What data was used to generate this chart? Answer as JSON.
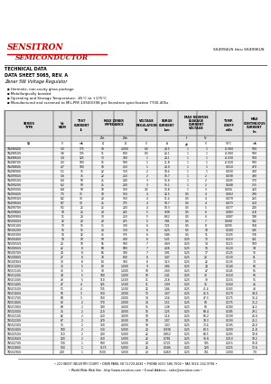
{
  "title_red": "SENSITRON",
  "title_red2": "SEMICONDUCTOR",
  "part_range": "SS4994US thru SS4996US",
  "bullets": [
    "Hermetic, non-cavity glass package",
    "Metallurgically bonded",
    "Operating and Storage Temperature: -65°C to +175°C",
    "Manufactured and screened to MIL-PRF-19500/398 per Sensitron specification 7700-405x"
  ],
  "col_units": [
    "NA",
    "V",
    "mA",
    "Ω",
    "Ω",
    "V",
    "A",
    "μA",
    "V",
    "%/°C",
    "mA"
  ],
  "col_units2": [
    "",
    "",
    "",
    "Zzt",
    "Zzk",
    "",
    "",
    "Ir",
    "Vr",
    "",
    ""
  ],
  "table_data": [
    [
      "1N4984US",
      "3.3",
      "175",
      "10",
      "1,000",
      "0.5",
      "28.5",
      "1",
      "1",
      "-0.060",
      "500"
    ],
    [
      "1N4985US",
      "3.6",
      "135",
      "11",
      "800",
      "0.5",
      "26.1",
      "1",
      "1",
      "-0.060",
      "500"
    ],
    [
      "1N4986US",
      "3.9",
      "125",
      "13",
      "700",
      "1",
      "24.1",
      "1",
      "1",
      "-0.030",
      "500"
    ],
    [
      "1N4987US",
      "4.3",
      "100",
      "15",
      "500",
      "1",
      "21.8",
      "1",
      "1",
      "-0.020",
      "500"
    ],
    [
      "1N4988US",
      "4.7",
      "100",
      "18",
      "450",
      "1",
      "20.0",
      "1",
      "1",
      "0.010",
      "470"
    ],
    [
      "1N4989US",
      "5.1",
      "75",
      "22",
      "350",
      "2",
      "18.4",
      "1",
      "1",
      "0.030",
      "430"
    ],
    [
      "1N4990US",
      "5.6",
      "75",
      "22",
      "250",
      "2",
      "16.7",
      "1",
      "2",
      "0.038",
      "390"
    ],
    [
      "1N4991US",
      "6.0",
      "50",
      "25",
      "200",
      "3",
      "15.6",
      "1",
      "2",
      "0.045",
      "370"
    ],
    [
      "1N4992US",
      "6.2",
      "50",
      "25",
      "200",
      "3",
      "15.1",
      "1",
      "2",
      "0.048",
      "355"
    ],
    [
      "1N4993US",
      "6.8",
      "50",
      "18",
      "150",
      "3.5",
      "13.8",
      "1",
      "3",
      "0.056",
      "320"
    ],
    [
      "1N4994US",
      "7.5",
      "35",
      "18",
      "150",
      "4",
      "12.5",
      "0.5",
      "4",
      "0.063",
      "290"
    ],
    [
      "1N4995US",
      "8.2",
      "30",
      "20",
      "150",
      "4",
      "11.4",
      "0.5",
      "4",
      "0.070",
      "265"
    ],
    [
      "1N4996US",
      "8.7",
      "30",
      "25",
      "175",
      "4",
      "10.7",
      "0.5",
      "4",
      "0.073",
      "250"
    ],
    [
      "1N4997US",
      "9.1",
      "25",
      "25",
      "200",
      "4",
      "10.3",
      "0.5",
      "5",
      "0.077",
      "240"
    ],
    [
      "1N4998US",
      "10",
      "25",
      "28",
      "225",
      "5",
      "9.38",
      "0.5",
      "6",
      "0.083",
      "218"
    ],
    [
      "1N4999US",
      "11",
      "20",
      "30",
      "250",
      "5",
      "8.52",
      "0.5",
      "6",
      "0.087",
      "198"
    ],
    [
      "1N5000US",
      "12",
      "20",
      "28",
      "275",
      "5",
      "7.81",
      "0.5",
      "7",
      "0.090",
      "182"
    ],
    [
      "1N5001US",
      "13",
      "15",
      "35",
      "300",
      "6",
      "7.21",
      "0.5",
      "8",
      "0.095",
      "168"
    ],
    [
      "1N5002US",
      "15",
      "15",
      "40",
      "350",
      "6",
      "6.25",
      "0.5",
      "10",
      "0.100",
      "145"
    ],
    [
      "1N5003US",
      "16",
      "12",
      "45",
      "375",
      "6",
      "5.86",
      "0.5",
      "11",
      "0.105",
      "136"
    ],
    [
      "1N5004US",
      "18",
      "10",
      "50",
      "400",
      "6",
      "5.21",
      "0.25",
      "13",
      "0.110",
      "121"
    ],
    [
      "1N5005US",
      "20",
      "10",
      "55",
      "500",
      "7",
      "4.69",
      "0.25",
      "14",
      "0.115",
      "109"
    ],
    [
      "1N5006US",
      "22",
      "8",
      "60",
      "600",
      "7",
      "4.26",
      "0.25",
      "16",
      "0.120",
      "99"
    ],
    [
      "1N5007US",
      "24",
      "8",
      "65",
      "700",
      "7",
      "3.91",
      "0.25",
      "17",
      "0.125",
      "91"
    ],
    [
      "1N5008US",
      "27",
      "8",
      "70",
      "800",
      "8",
      "3.47",
      "0.25",
      "20",
      "0.130",
      "81"
    ],
    [
      "1N5009US",
      "30",
      "8",
      "80",
      "900",
      "8",
      "3.13",
      "0.25",
      "22",
      "0.135",
      "73"
    ],
    [
      "1N5010US",
      "33",
      "5",
      "80",
      "1,000",
      "9",
      "2.84",
      "0.25",
      "24",
      "0.140",
      "66"
    ],
    [
      "1N5011US",
      "36",
      "5",
      "90",
      "1,000",
      "10",
      "2.60",
      "0.25",
      "27",
      "0.145",
      "61"
    ],
    [
      "1N5012US",
      "39",
      "5",
      "100",
      "1,000",
      "10",
      "2.41",
      "0.25",
      "30",
      "0.150",
      "56"
    ],
    [
      "1N5013US",
      "43",
      "5",
      "110",
      "1,500",
      "11",
      "2.18",
      "0.25",
      "33",
      "0.155",
      "51"
    ],
    [
      "1N5014US",
      "47",
      "4",
      "125",
      "1,500",
      "11",
      "1.99",
      "0.25",
      "36",
      "0.160",
      "46"
    ],
    [
      "1N5015US",
      "51",
      "4",
      "135",
      "1,500",
      "12",
      "1.84",
      "0.25",
      "41.4",
      "0.165",
      "43"
    ],
    [
      "1N5016US",
      "56",
      "3",
      "150",
      "2,000",
      "13",
      "1.67",
      "0.25",
      "45.5",
      "0.170",
      "39.0"
    ],
    [
      "1N5017US",
      "60",
      "3",
      "160",
      "2,000",
      "14",
      "1.56",
      "0.25",
      "47.3",
      "0.175",
      "36.4"
    ],
    [
      "1N5018US",
      "62",
      "2",
      "170",
      "2,000",
      "14",
      "1.51",
      "0.25",
      "50",
      "0.175",
      "35.2"
    ],
    [
      "1N5019US",
      "68",
      "2",
      "190",
      "3,000",
      "15",
      "1.38",
      "0.25",
      "56",
      "0.180",
      "32.1"
    ],
    [
      "1N5020US",
      "75",
      "2",
      "210",
      "3,000",
      "16",
      "1.25",
      "0.25",
      "60.4",
      "0.185",
      "29.1"
    ],
    [
      "1N5021US",
      "82",
      "2",
      "250",
      "3,000",
      "18",
      "1.14",
      "0.25",
      "66.2",
      "0.190",
      "26.6"
    ],
    [
      "1N5022US",
      "87",
      "2",
      "270",
      "3,500",
      "18",
      "1.07",
      "0.25",
      "70.3",
      "0.193",
      "25.1"
    ],
    [
      "1N5023US",
      "91",
      "2",
      "300",
      "4,000",
      "18",
      "1.03",
      "0.25",
      "73.4",
      "0.195",
      "24.0"
    ],
    [
      "1N5024US",
      "100",
      "2",
      "350",
      "5,000",
      "20",
      "0.938",
      "0.25",
      "80.5",
      "0.200",
      "21.8"
    ],
    [
      "1N5025US",
      "110",
      "2",
      "400",
      "5,000",
      "22",
      "0.852",
      "0.25",
      "88.5",
      "0.205",
      "19.8"
    ],
    [
      "1N5026US",
      "120",
      "2",
      "450",
      "5,000",
      "22",
      "0.781",
      "0.25",
      "96.8",
      "0.210",
      "18.2"
    ],
    [
      "1N5027US",
      "130",
      "1",
      "500",
      "5,000",
      "24",
      "0.721",
      "0.25",
      "105",
      "0.215",
      "16.8"
    ],
    [
      "1N5028US",
      "160",
      "1",
      "1175",
      "5,000",
      "26",
      "0.586",
      "0.25",
      "129",
      "0.225",
      "13.6"
    ],
    [
      "1N5029US",
      "200",
      "1",
      "1500",
      "5,000",
      "40",
      "0.469",
      "0.25",
      "161",
      "1.000",
      "7.0"
    ]
  ],
  "watermark_text": "KAZUS.RU",
  "bg_color": "#ffffff",
  "border_color": "#777777",
  "text_color": "#000000",
  "red_color": "#cc0000",
  "footer_line1": "• 221 WEST INDUSTRY COURT • DEER PARK, NY 11729-4681 • PHONE (631) 586-7600 • FAX (631) 242-9798 •",
  "footer_line2": "• World Wide Web Site - http://www.sensitron.com • E-mail Address - sales@sensitron.com •"
}
